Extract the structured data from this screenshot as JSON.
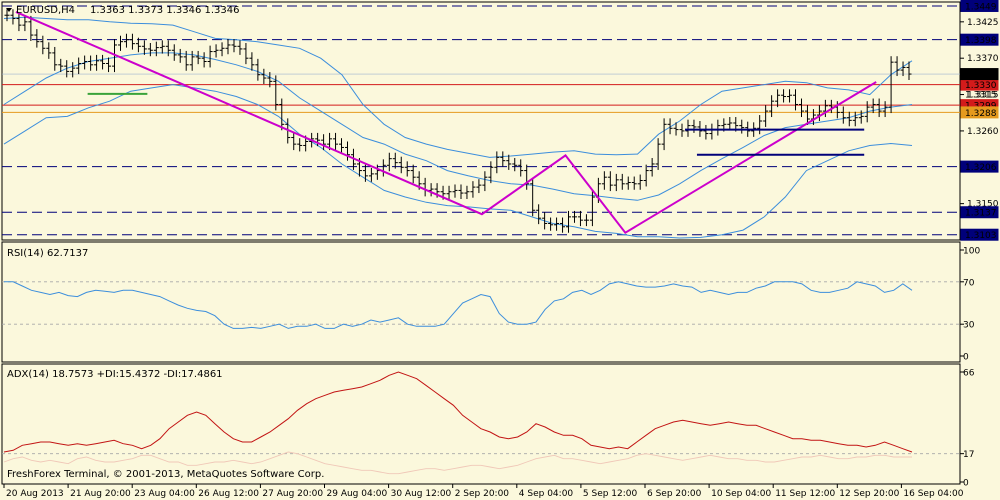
{
  "header": {
    "symbol": "EURUSD,H4",
    "ohlc": "1.3363 1.3373 1.3346 1.3346",
    "rsi_label": "RSI(14) 62.7137",
    "adx_label": "ADX(14) 18.7573 +DI:15.4372 -DI:17.4861",
    "footer": "FreshForex Terminal, © 2001-2013, MetaQuotes Software Corp."
  },
  "colors": {
    "background": "#fbf8dc",
    "bollinger": "#3c8edc",
    "zigzag": "#cc00cc",
    "support": "#00007a",
    "resistance_red": "#d31b1b",
    "orange_level": "#e59a1e",
    "candles": "#000000",
    "adx": "#c21414",
    "di": "#f0c8b8",
    "rsi": "#3c8edc"
  },
  "chart_data": [
    {
      "type": "candlestick",
      "title": "EURUSD,H4",
      "ylim": [
        1.3095,
        1.3455
      ],
      "price_ticks": [
        "1.3425",
        "1.3370",
        "1.3315",
        "1.3260",
        "1.3150"
      ],
      "x_tick_labels": [
        "20 Aug 2013",
        "21 Aug 20:00",
        "23 Aug 04:00",
        "26 Aug 12:00",
        "27 Aug 20:00",
        "29 Aug 04:00",
        "30 Aug 12:00",
        "2 Sep 20:00",
        "4 Sep 04:00",
        "5 Sep 12:00",
        "6 Sep 20:00",
        "10 Sep 04:00",
        "11 Sep 12:00",
        "12 Sep 20:00",
        "16 Sep 04:00"
      ],
      "closes": [
        1.3435,
        1.343,
        1.342,
        1.3425,
        1.3405,
        1.3395,
        1.3385,
        1.3378,
        1.336,
        1.3358,
        1.335,
        1.3355,
        1.3362,
        1.3365,
        1.336,
        1.3366,
        1.3362,
        1.3358,
        1.339,
        1.3395,
        1.3398,
        1.3392,
        1.3388,
        1.3384,
        1.3382,
        1.3386,
        1.3388,
        1.3382,
        1.3375,
        1.3372,
        1.336,
        1.3372,
        1.337,
        1.3365,
        1.338,
        1.3382,
        1.3385,
        1.339,
        1.3388,
        1.3384,
        1.337,
        1.336,
        1.3345,
        1.334,
        1.3335,
        1.33,
        1.327,
        1.325,
        1.324,
        1.3238,
        1.3244,
        1.3248,
        1.3246,
        1.324,
        1.3248,
        1.324,
        1.3235,
        1.3224,
        1.321,
        1.32,
        1.3192,
        1.3195,
        1.32,
        1.3208,
        1.3218,
        1.3212,
        1.3205,
        1.32,
        1.319,
        1.318,
        1.317,
        1.3172,
        1.3168,
        1.3165,
        1.3168,
        1.317,
        1.3166,
        1.3168,
        1.3175,
        1.3178,
        1.319,
        1.3205,
        1.322,
        1.3215,
        1.321,
        1.3208,
        1.32,
        1.318,
        1.314,
        1.3128,
        1.312,
        1.3118,
        1.312,
        1.3115,
        1.313,
        1.313,
        1.3125,
        1.3125,
        1.316,
        1.318,
        1.319,
        1.3178,
        1.3186,
        1.318,
        1.3182,
        1.318,
        1.3185,
        1.32,
        1.321,
        1.324,
        1.327,
        1.3264,
        1.3262,
        1.326,
        1.3268,
        1.3266,
        1.326,
        1.3256,
        1.3262,
        1.3268,
        1.327,
        1.3272,
        1.3268,
        1.3265,
        1.326,
        1.3264,
        1.3275,
        1.329,
        1.3305,
        1.3314,
        1.3312,
        1.3314,
        1.33,
        1.329,
        1.3278,
        1.3284,
        1.329,
        1.3298,
        1.3296,
        1.3288,
        1.328,
        1.3276,
        1.328,
        1.3282,
        1.3296,
        1.33,
        1.329,
        1.3296,
        1.3364,
        1.3352,
        1.3356,
        1.3346
      ],
      "bollinger": {
        "upper": [
          1.343,
          1.3432,
          1.343,
          1.3428,
          1.3428,
          1.3425,
          1.3423,
          1.3422,
          1.342,
          1.341,
          1.34,
          1.3398,
          1.3395,
          1.339,
          1.3385,
          1.337,
          1.3345,
          1.33,
          1.327,
          1.325,
          1.324,
          1.3232,
          1.3226,
          1.322,
          1.3222,
          1.3225,
          1.3228,
          1.323,
          1.3225,
          1.3224,
          1.3225,
          1.3255,
          1.3275,
          1.33,
          1.332,
          1.3325,
          1.333,
          1.3335,
          1.3333,
          1.3325,
          1.3322,
          1.3315,
          1.3345,
          1.3366
        ],
        "middle": [
          1.33,
          1.332,
          1.334,
          1.3355,
          1.3365,
          1.337,
          1.3375,
          1.3378,
          1.3378,
          1.3375,
          1.3368,
          1.336,
          1.335,
          1.3335,
          1.331,
          1.329,
          1.327,
          1.325,
          1.324,
          1.3225,
          1.3215,
          1.32,
          1.3192,
          1.3185,
          1.318,
          1.3178,
          1.3172,
          1.3165,
          1.3162,
          1.3158,
          1.3155,
          1.3163,
          1.318,
          1.32,
          1.3218,
          1.3235,
          1.3253,
          1.3265,
          1.327,
          1.3275,
          1.328,
          1.329,
          1.3296,
          1.33
        ],
        "lower": [
          1.324,
          1.326,
          1.328,
          1.3282,
          1.3295,
          1.3305,
          1.332,
          1.3325,
          1.333,
          1.3325,
          1.332,
          1.3312,
          1.33,
          1.3282,
          1.3255,
          1.3235,
          1.321,
          1.319,
          1.317,
          1.316,
          1.3152,
          1.3147,
          1.3145,
          1.3142,
          1.314,
          1.313,
          1.312,
          1.3115,
          1.3108,
          1.3105,
          1.31,
          1.31,
          1.3098,
          1.3099,
          1.3103,
          1.311,
          1.313,
          1.316,
          1.32,
          1.3215,
          1.323,
          1.3238,
          1.3241,
          1.3238
        ]
      },
      "zigzag": [
        [
          1,
          1.344
        ],
        [
          40,
          1.3134
        ],
        [
          47,
          1.3223
        ],
        [
          52,
          1.3106
        ],
        [
          73,
          1.3334
        ]
      ],
      "levels": [
        {
          "price": 1.3449,
          "label": "1.3449",
          "style": "dashed",
          "color": "#00007a"
        },
        {
          "price": 1.3398,
          "label": "1.3398",
          "style": "dashed",
          "color": "#00007a"
        },
        {
          "price": 1.333,
          "label": "1.3330",
          "style": "solid",
          "color": "#d31b1b"
        },
        {
          "price": 1.3299,
          "label": "1.3299",
          "style": "solid",
          "color": "#d31b1b"
        },
        {
          "price": 1.3288,
          "label": "1.3288",
          "style": "solid",
          "color": "#e59a1e"
        },
        {
          "price": 1.3206,
          "label": "1.3206",
          "style": "dashed",
          "color": "#00007a"
        },
        {
          "price": 1.3137,
          "label": "1.3137",
          "style": "dashed",
          "color": "#00007a"
        },
        {
          "price": 1.3103,
          "label": "1.3103",
          "style": "dashed",
          "color": "#00007a"
        }
      ],
      "current_price": {
        "price": 1.3346,
        "label": "1.3346"
      },
      "level_1_3315": {
        "price": 1.3315,
        "label": "1.3315"
      },
      "support_segments": [
        {
          "x0": 57,
          "x1": 72,
          "price": 1.3262
        },
        {
          "x0": 58,
          "x1": 72,
          "price": 1.3224
        }
      ],
      "green_segment": {
        "x0": 7,
        "x1": 12,
        "price": 1.3316
      }
    },
    {
      "type": "line",
      "title": "RSI(14) 62.7137",
      "ylim": [
        0,
        100
      ],
      "y_ticks": [
        "100",
        "70",
        "30",
        "0"
      ],
      "values": [
        70,
        70,
        66,
        62,
        60,
        58,
        60,
        57,
        56,
        60,
        62,
        61,
        60,
        62,
        62,
        60,
        58,
        56,
        52,
        48,
        45,
        43,
        42,
        38,
        30,
        26,
        26,
        27,
        26,
        28,
        30,
        26,
        28,
        28,
        30,
        26,
        26,
        30,
        28,
        30,
        34,
        32,
        34,
        36,
        30,
        28,
        28,
        28,
        30,
        40,
        50,
        54,
        58,
        56,
        40,
        32,
        30,
        30,
        32,
        44,
        52,
        54,
        60,
        62,
        58,
        62,
        68,
        70,
        68,
        66,
        65,
        65,
        66,
        68,
        66,
        65,
        60,
        62,
        60,
        58,
        60,
        60,
        64,
        66,
        70,
        70,
        70,
        68,
        62,
        60,
        60,
        62,
        64,
        70,
        68,
        66,
        60,
        62,
        68,
        62
      ],
      "levels": [
        70,
        30
      ]
    },
    {
      "type": "line",
      "title": "ADX(14) 18.7573 +DI:15.4372 -DI:17.4861",
      "ylim": [
        0,
        66
      ],
      "y_ticks": [
        "66",
        "17",
        "0"
      ],
      "series": [
        {
          "name": "ADX(14)",
          "values": [
            18,
            19,
            22,
            23,
            24,
            24,
            23,
            22,
            23,
            22,
            23,
            24,
            25,
            23,
            22,
            20,
            22,
            26,
            32,
            36,
            40,
            42,
            40,
            35,
            30,
            26,
            24,
            24,
            27,
            30,
            34,
            38,
            43,
            47,
            50,
            52,
            54,
            55,
            56,
            57,
            59,
            61,
            64,
            66,
            64,
            62,
            58,
            54,
            50,
            46,
            40,
            36,
            32,
            30,
            27,
            26,
            27,
            30,
            35,
            33,
            30,
            28,
            28,
            26,
            22,
            21,
            20,
            21,
            20,
            24,
            28,
            32,
            34,
            36,
            37,
            36,
            35,
            34,
            35,
            36,
            35,
            34,
            34,
            32,
            30,
            28,
            26,
            26,
            25,
            25,
            24,
            23,
            22,
            22,
            21,
            22,
            24,
            22,
            20,
            18
          ]
        },
        {
          "name": "+DI",
          "values": [
            12,
            14,
            15,
            13,
            12,
            13,
            12,
            11,
            14,
            15,
            13,
            12,
            12,
            13,
            14,
            16,
            16,
            14,
            12,
            12,
            10,
            10,
            11,
            12,
            12,
            13,
            12,
            11,
            12,
            14,
            16,
            18,
            17,
            15,
            13,
            11,
            10,
            9,
            8,
            7,
            7,
            6,
            5,
            5,
            6,
            7,
            8,
            8,
            7,
            8,
            9,
            10,
            10,
            9,
            8,
            9,
            10,
            12,
            14,
            15,
            16,
            14,
            14,
            13,
            12,
            11,
            12,
            13,
            14,
            16,
            17,
            16,
            15,
            14,
            13,
            14,
            15,
            16,
            15,
            14,
            14,
            13,
            13,
            12,
            12,
            13,
            14,
            15,
            15,
            16,
            15,
            14,
            14,
            15,
            15,
            16,
            16,
            15,
            15,
            15
          ]
        }
      ]
    }
  ]
}
